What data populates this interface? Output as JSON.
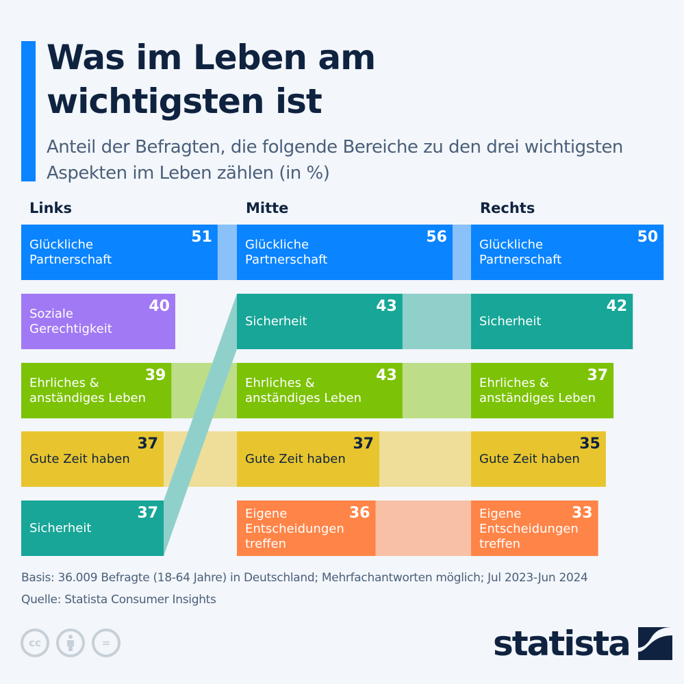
{
  "header": {
    "title": "Was im Leben am wichtigsten ist",
    "subtitle": "Anteil der Befragten, die folgende Bereiche zu den drei wichtigsten Aspekten im Leben zählen (in %)"
  },
  "footer": {
    "basis": "Basis: 36.009 Befragte (18-64 Jahre) in Deutschland; Mehrfachantworten möglich; Jul 2023-Jun 2024",
    "source": "Quelle: Statista Consumer Insights",
    "license_icons": [
      "cc-icon",
      "attribution-icon",
      "no-derivatives-icon"
    ],
    "license_glyphs": [
      "cc",
      "i",
      "="
    ],
    "logo": "statista"
  },
  "colors": {
    "Glückliche Partnerschaft": "#0a84ff",
    "Soziale Gerechtigkeit": "#a179f5",
    "Sicherheit": "#17a697",
    "Ehrliches & anständiges Leben": "#7cc207",
    "Gute Zeit haben": "#e8c52e",
    "Eigene Entscheidungen treffen": "#ff8447",
    "accent": "#0a84ff",
    "text_dark": "#0f2340"
  },
  "chart_data": {
    "type": "bar",
    "title": "Was im Leben am wichtigsten ist",
    "subtitle": "Anteil der Befragten, die folgende Bereiche zu den drei wichtigsten Aspekten im Leben zählen (in %)",
    "unit": "%",
    "xlim": [
      0,
      56
    ],
    "groups": [
      {
        "name": "Links",
        "items": [
          {
            "label": "Glückliche\nPartnerschaft",
            "category": "Glückliche Partnerschaft",
            "value": 51
          },
          {
            "label": "Soziale\nGerechtigkeit",
            "category": "Soziale Gerechtigkeit",
            "value": 40
          },
          {
            "label": "Ehrliches &\nanständiges Leben",
            "category": "Ehrliches & anständiges Leben",
            "value": 39
          },
          {
            "label": "Gute Zeit haben",
            "category": "Gute Zeit haben",
            "value": 37,
            "dark_text": true
          },
          {
            "label": "Sicherheit",
            "category": "Sicherheit",
            "value": 37
          }
        ]
      },
      {
        "name": "Mitte",
        "items": [
          {
            "label": "Glückliche\nPartnerschaft",
            "category": "Glückliche Partnerschaft",
            "value": 56
          },
          {
            "label": "Sicherheit",
            "category": "Sicherheit",
            "value": 43
          },
          {
            "label": "Ehrliches &\nanständiges Leben",
            "category": "Ehrliches & anständiges Leben",
            "value": 43
          },
          {
            "label": "Gute Zeit haben",
            "category": "Gute Zeit haben",
            "value": 37,
            "dark_text": true
          },
          {
            "label": "Eigene\nEntscheidungen\ntreffen",
            "category": "Eigene Entscheidungen treffen",
            "value": 36
          }
        ]
      },
      {
        "name": "Rechts",
        "items": [
          {
            "label": "Glückliche\nPartnerschaft",
            "category": "Glückliche Partnerschaft",
            "value": 50
          },
          {
            "label": "Sicherheit",
            "category": "Sicherheit",
            "value": 42
          },
          {
            "label": "Ehrliches &\nanständiges Leben",
            "category": "Ehrliches & anständiges Leben",
            "value": 37
          },
          {
            "label": "Gute Zeit haben",
            "category": "Gute Zeit haben",
            "value": 35,
            "dark_text": true
          },
          {
            "label": "Eigene\nEntscheidungen\ntreffen",
            "category": "Eigene Entscheidungen treffen",
            "value": 33
          }
        ]
      }
    ]
  }
}
